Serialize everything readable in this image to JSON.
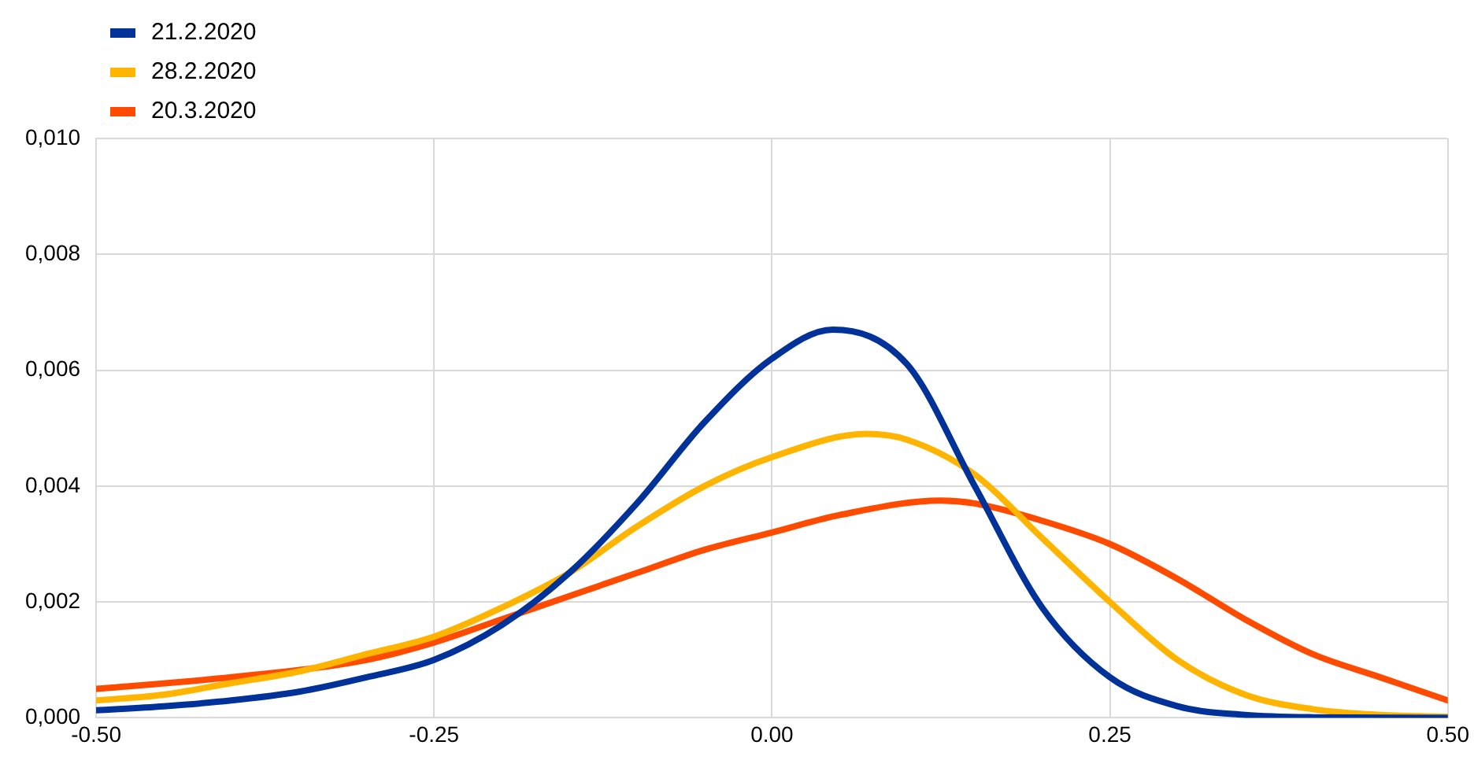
{
  "chart_data": {
    "type": "line",
    "legend": "top left",
    "grid": true,
    "marker": "none",
    "line_style": "solid",
    "xlim": [
      -0.5,
      0.5
    ],
    "xticks": [
      {
        "value": -0.5,
        "label": "-0.50"
      },
      {
        "value": -0.25,
        "label": "-0.25"
      },
      {
        "value": 0,
        "label": "0.00"
      },
      {
        "value": 0.25,
        "label": "0.25"
      },
      {
        "value": 0.5,
        "label": "0.50"
      }
    ],
    "ylim": [
      0,
      0.01
    ],
    "yticks": [
      {
        "value": 0,
        "label": "0,000"
      },
      {
        "value": 0.002,
        "label": "0,002"
      },
      {
        "value": 0.004,
        "label": "0,004"
      },
      {
        "value": 0.006,
        "label": "0,006"
      },
      {
        "value": 0.008,
        "label": "0,008"
      },
      {
        "value": 0.01,
        "label": "0,010"
      }
    ],
    "series": [
      {
        "name": "21.2.2020",
        "color": "#003299",
        "x": [
          -0.5,
          -0.45,
          -0.4,
          -0.35,
          -0.3,
          -0.25,
          -0.2,
          -0.15,
          -0.1,
          -0.05,
          0,
          0.045,
          0.1,
          0.15,
          0.2,
          0.25,
          0.3,
          0.35,
          0.4,
          0.5
        ],
        "values": [
          0.00013,
          0.0002,
          0.0003,
          0.00045,
          0.0007,
          0.001,
          0.0016,
          0.0025,
          0.0037,
          0.0051,
          0.0062,
          0.0067,
          0.0061,
          0.004,
          0.0019,
          0.0007,
          0.0002,
          5e-05,
          1e-05,
          0
        ]
      },
      {
        "name": "28.2.2020",
        "color": "#ffb400",
        "x": [
          -0.5,
          -0.45,
          -0.4,
          -0.35,
          -0.3,
          -0.25,
          -0.2,
          -0.15,
          -0.1,
          -0.05,
          0,
          0.07,
          0.1,
          0.15,
          0.2,
          0.25,
          0.3,
          0.35,
          0.4,
          0.45,
          0.5
        ],
        "values": [
          0.0003,
          0.0004,
          0.0006,
          0.0008,
          0.0011,
          0.0014,
          0.0019,
          0.0025,
          0.0033,
          0.004,
          0.0045,
          0.0049,
          0.0048,
          0.0042,
          0.0031,
          0.002,
          0.001,
          0.0004,
          0.00015,
          5e-05,
          2e-05
        ]
      },
      {
        "name": "20.3.2020",
        "color": "#ff4b00",
        "x": [
          -0.5,
          -0.4,
          -0.3,
          -0.25,
          -0.2,
          -0.15,
          -0.1,
          -0.05,
          0,
          0.05,
          0.125,
          0.15,
          0.2,
          0.25,
          0.3,
          0.35,
          0.4,
          0.45,
          0.5
        ],
        "values": [
          0.0005,
          0.0007,
          0.001,
          0.0013,
          0.0017,
          0.0021,
          0.0025,
          0.0029,
          0.0032,
          0.0035,
          0.00375,
          0.0037,
          0.0034,
          0.003,
          0.0024,
          0.0017,
          0.0011,
          0.0007,
          0.0003
        ]
      }
    ]
  }
}
